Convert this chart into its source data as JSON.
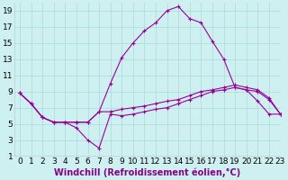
{
  "xlabel": "Windchill (Refroidissement éolien,°C)",
  "background_color": "#cff0f0",
  "line_color": "#990099",
  "grid_color": "#aadada",
  "xlim": [
    -0.5,
    23
  ],
  "ylim": [
    1,
    20
  ],
  "xticks": [
    0,
    1,
    2,
    3,
    4,
    5,
    6,
    7,
    8,
    9,
    10,
    11,
    12,
    13,
    14,
    15,
    16,
    17,
    18,
    19,
    20,
    21,
    22,
    23
  ],
  "yticks": [
    1,
    3,
    5,
    7,
    9,
    11,
    13,
    15,
    17,
    19
  ],
  "series1_x": [
    0,
    1,
    2,
    3,
    4,
    5,
    6,
    7,
    8,
    9,
    10,
    11,
    12,
    13,
    14,
    15,
    16,
    17,
    18,
    19,
    20,
    21,
    22,
    23
  ],
  "series1_y": [
    8.8,
    7.5,
    5.8,
    5.2,
    5.2,
    5.2,
    5.2,
    6.5,
    10.0,
    13.2,
    15.0,
    16.5,
    17.5,
    19.0,
    19.5,
    18.0,
    17.5,
    15.2,
    13.0,
    9.5,
    9.2,
    7.8,
    6.2,
    6.2
  ],
  "series2_x": [
    0,
    1,
    2,
    3,
    4,
    5,
    6,
    7,
    8,
    9,
    10,
    11,
    12,
    13,
    14,
    15,
    16,
    17,
    18,
    19,
    20,
    21,
    22,
    23
  ],
  "series2_y": [
    8.8,
    7.5,
    5.8,
    5.2,
    5.2,
    4.5,
    3.0,
    2.0,
    6.2,
    6.0,
    6.2,
    6.5,
    6.8,
    7.0,
    7.5,
    8.0,
    8.5,
    9.0,
    9.2,
    9.5,
    9.2,
    9.0,
    8.0,
    6.2
  ],
  "series3_x": [
    0,
    1,
    2,
    3,
    4,
    5,
    6,
    7,
    8,
    9,
    10,
    11,
    12,
    13,
    14,
    15,
    16,
    17,
    18,
    19,
    20,
    21,
    22,
    23
  ],
  "series3_y": [
    8.8,
    7.5,
    5.8,
    5.2,
    5.2,
    5.2,
    5.2,
    6.5,
    6.5,
    6.8,
    7.0,
    7.2,
    7.5,
    7.8,
    8.0,
    8.5,
    9.0,
    9.2,
    9.5,
    9.8,
    9.5,
    9.2,
    8.2,
    6.2
  ],
  "tick_fontsize": 6.5,
  "xlabel_fontsize": 7,
  "marker": "+"
}
